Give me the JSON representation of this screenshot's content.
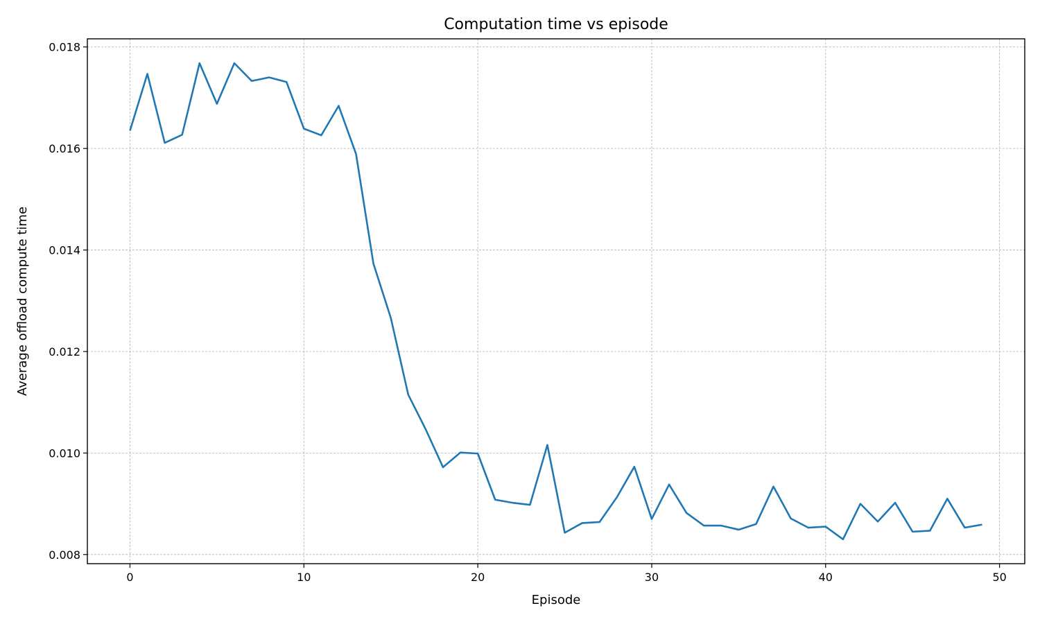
{
  "chart_data": {
    "type": "line",
    "title": "Computation time vs episode",
    "xlabel": "Episode",
    "ylabel": "Average offload compute time",
    "xlim": [
      -2.45,
      51.45
    ],
    "ylim": [
      0.00782,
      0.01816
    ],
    "xticks": [
      0,
      10,
      20,
      30,
      40,
      50
    ],
    "yticks": [
      0.008,
      0.01,
      0.012,
      0.014,
      0.016,
      0.018
    ],
    "ytick_labels": [
      "0.008",
      "0.010",
      "0.012",
      "0.014",
      "0.016",
      "0.018"
    ],
    "grid": true,
    "series": [
      {
        "color": "#1f77b4",
        "x": [
          0,
          1,
          2,
          3,
          4,
          5,
          6,
          7,
          8,
          9,
          10,
          11,
          12,
          13,
          14,
          15,
          16,
          17,
          18,
          19,
          20,
          21,
          22,
          23,
          24,
          25,
          26,
          27,
          28,
          29,
          30,
          31,
          32,
          33,
          34,
          35,
          36,
          37,
          38,
          39,
          40,
          41,
          42,
          43,
          44,
          45,
          46,
          47,
          48,
          49
        ],
        "y": [
          0.01635,
          0.01747,
          0.01611,
          0.01627,
          0.01768,
          0.01688,
          0.01768,
          0.01733,
          0.0174,
          0.01731,
          0.01639,
          0.01626,
          0.01684,
          0.01589,
          0.01373,
          0.01266,
          0.01115,
          0.01047,
          0.00972,
          0.01001,
          0.00999,
          0.00908,
          0.00902,
          0.00898,
          0.01016,
          0.00843,
          0.00862,
          0.00864,
          0.00913,
          0.00973,
          0.0087,
          0.00938,
          0.00882,
          0.00857,
          0.00857,
          0.00849,
          0.0086,
          0.00934,
          0.00871,
          0.00853,
          0.00855,
          0.0083,
          0.009,
          0.00865,
          0.00902,
          0.00845,
          0.00847,
          0.0091,
          0.00853,
          0.00859
        ]
      }
    ]
  }
}
